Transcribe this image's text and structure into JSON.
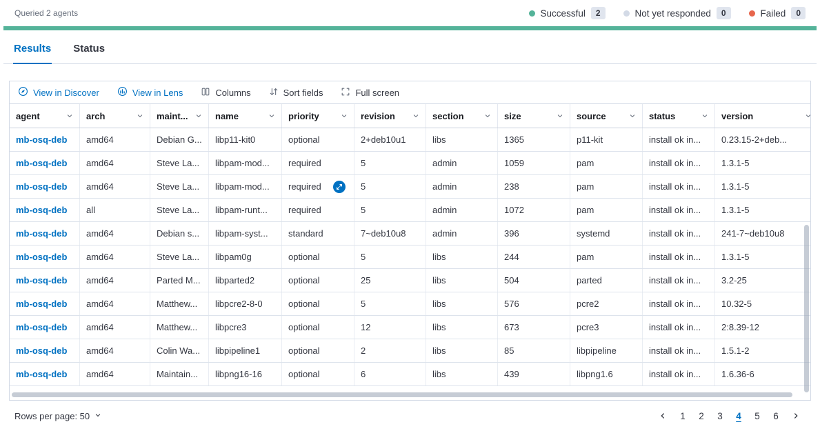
{
  "header": {
    "queried_text": "Queried 2 agents",
    "legend": [
      {
        "label": "Successful",
        "count": "2",
        "color": "#54B399"
      },
      {
        "label": "Not yet responded",
        "count": "0",
        "color": "#D3DAE6"
      },
      {
        "label": "Failed",
        "count": "0",
        "color": "#E7664C"
      }
    ]
  },
  "progress": {
    "color": "#54B399"
  },
  "tabs": [
    {
      "label": "Results",
      "active": true
    },
    {
      "label": "Status",
      "active": false
    }
  ],
  "toolbar": {
    "view_in_discover": "View in Discover",
    "view_in_lens": "View in Lens",
    "columns": "Columns",
    "sort_fields": "Sort fields",
    "full_screen": "Full screen"
  },
  "grid": {
    "columns": [
      "agent",
      "arch",
      "maint...",
      "name",
      "priority",
      "revision",
      "section",
      "size",
      "source",
      "status",
      "version"
    ],
    "rows": [
      [
        "mb-osq-deb",
        "amd64",
        "Debian G...",
        "libp11-kit0",
        "optional",
        "2+deb10u1",
        "libs",
        "1365",
        "p11-kit",
        "install ok in...",
        "0.23.15-2+deb..."
      ],
      [
        "mb-osq-deb",
        "amd64",
        "Steve La...",
        "libpam-mod...",
        "required",
        "5",
        "admin",
        "1059",
        "pam",
        "install ok in...",
        "1.3.1-5"
      ],
      [
        "mb-osq-deb",
        "amd64",
        "Steve La...",
        "libpam-mod...",
        "required",
        "5",
        "admin",
        "238",
        "pam",
        "install ok in...",
        "1.3.1-5"
      ],
      [
        "mb-osq-deb",
        "all",
        "Steve La...",
        "libpam-runt...",
        "required",
        "5",
        "admin",
        "1072",
        "pam",
        "install ok in...",
        "1.3.1-5"
      ],
      [
        "mb-osq-deb",
        "amd64",
        "Debian s...",
        "libpam-syst...",
        "standard",
        "7~deb10u8",
        "admin",
        "396",
        "systemd",
        "install ok in...",
        "241-7~deb10u8"
      ],
      [
        "mb-osq-deb",
        "amd64",
        "Steve La...",
        "libpam0g",
        "optional",
        "5",
        "libs",
        "244",
        "pam",
        "install ok in...",
        "1.3.1-5"
      ],
      [
        "mb-osq-deb",
        "amd64",
        "Parted M...",
        "libparted2",
        "optional",
        "25",
        "libs",
        "504",
        "parted",
        "install ok in...",
        "3.2-25"
      ],
      [
        "mb-osq-deb",
        "amd64",
        "Matthew...",
        "libpcre2-8-0",
        "optional",
        "5",
        "libs",
        "576",
        "pcre2",
        "install ok in...",
        "10.32-5"
      ],
      [
        "mb-osq-deb",
        "amd64",
        "Matthew...",
        "libpcre3",
        "optional",
        "12",
        "libs",
        "673",
        "pcre3",
        "install ok in...",
        "2:8.39-12"
      ],
      [
        "mb-osq-deb",
        "amd64",
        "Colin Wa...",
        "libpipeline1",
        "optional",
        "2",
        "libs",
        "85",
        "libpipeline",
        "install ok in...",
        "1.5.1-2"
      ],
      [
        "mb-osq-deb",
        "amd64",
        "Maintain...",
        "libpng16-16",
        "optional",
        "6",
        "libs",
        "439",
        "libpng1.6",
        "install ok in...",
        "1.6.36-6"
      ]
    ],
    "expanded_cell": {
      "row": 2,
      "col": 4
    }
  },
  "footer": {
    "rows_per_page": "Rows per page: 50",
    "pages": [
      "1",
      "2",
      "3",
      "4",
      "5",
      "6"
    ],
    "active_page": "4"
  },
  "colors": {
    "accent": "#0071C2",
    "border": "#D3DAE6",
    "text": "#343741",
    "muted": "#69707D"
  }
}
